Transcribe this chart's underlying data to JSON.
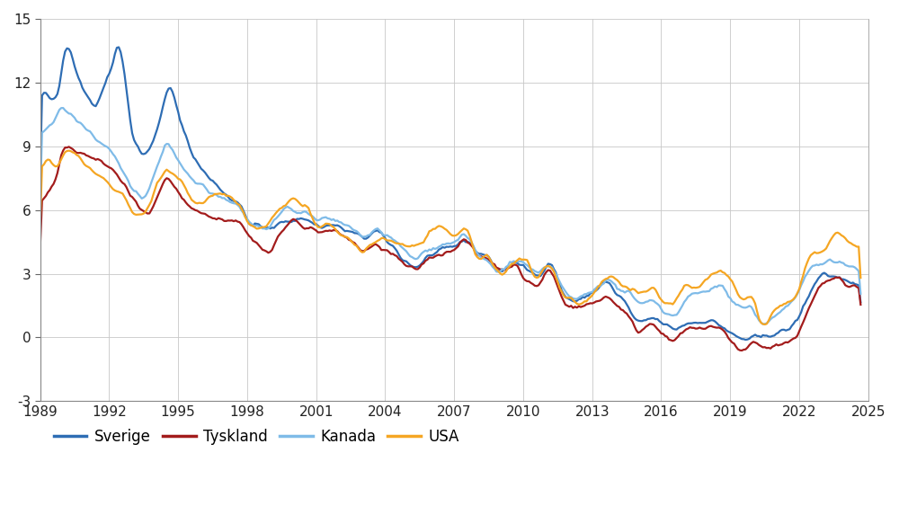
{
  "ylim": [
    -3,
    15
  ],
  "yticks": [
    -3,
    0,
    3,
    6,
    9,
    12,
    15
  ],
  "xticks": [
    1989,
    1992,
    1995,
    1998,
    2001,
    2004,
    2007,
    2010,
    2013,
    2016,
    2019,
    2022,
    2025
  ],
  "series": {
    "Sverige": {
      "color": "#2E6DB4",
      "linewidth": 1.6
    },
    "Tyskland": {
      "color": "#A31C1C",
      "linewidth": 1.6
    },
    "Kanada": {
      "color": "#7FBBE8",
      "linewidth": 1.6
    },
    "USA": {
      "color": "#F5A623",
      "linewidth": 1.6
    }
  },
  "Sverige_knots": [
    [
      1989.0,
      11.2
    ],
    [
      1989.17,
      11.5
    ],
    [
      1989.33,
      11.4
    ],
    [
      1989.5,
      11.1
    ],
    [
      1989.67,
      11.3
    ],
    [
      1989.83,
      11.7
    ],
    [
      1990.0,
      13.2
    ],
    [
      1990.17,
      13.8
    ],
    [
      1990.33,
      13.5
    ],
    [
      1990.5,
      12.8
    ],
    [
      1990.67,
      12.2
    ],
    [
      1990.83,
      11.8
    ],
    [
      1991.0,
      11.5
    ],
    [
      1991.17,
      11.2
    ],
    [
      1991.33,
      10.9
    ],
    [
      1991.5,
      11.0
    ],
    [
      1991.67,
      11.5
    ],
    [
      1991.83,
      12.0
    ],
    [
      1992.0,
      12.5
    ],
    [
      1992.17,
      13.0
    ],
    [
      1992.33,
      13.7
    ],
    [
      1992.5,
      13.5
    ],
    [
      1992.67,
      12.5
    ],
    [
      1992.83,
      11.0
    ],
    [
      1993.0,
      9.5
    ],
    [
      1993.17,
      9.2
    ],
    [
      1993.33,
      8.8
    ],
    [
      1993.5,
      8.5
    ],
    [
      1993.67,
      8.8
    ],
    [
      1993.83,
      9.0
    ],
    [
      1994.0,
      9.5
    ],
    [
      1994.17,
      10.2
    ],
    [
      1994.33,
      10.8
    ],
    [
      1994.5,
      11.5
    ],
    [
      1994.67,
      11.8
    ],
    [
      1994.83,
      11.3
    ],
    [
      1995.0,
      10.5
    ],
    [
      1995.17,
      10.0
    ],
    [
      1995.33,
      9.5
    ],
    [
      1995.5,
      9.0
    ],
    [
      1995.67,
      8.5
    ],
    [
      1995.83,
      8.2
    ],
    [
      1996.0,
      8.0
    ],
    [
      1996.33,
      7.5
    ],
    [
      1996.67,
      7.2
    ],
    [
      1997.0,
      6.8
    ],
    [
      1997.33,
      6.5
    ],
    [
      1997.67,
      6.3
    ],
    [
      1998.0,
      5.5
    ],
    [
      1998.33,
      5.3
    ],
    [
      1998.67,
      5.2
    ],
    [
      1999.0,
      5.1
    ],
    [
      1999.33,
      5.3
    ],
    [
      1999.67,
      5.5
    ],
    [
      2000.0,
      5.5
    ],
    [
      2000.33,
      5.6
    ],
    [
      2000.67,
      5.5
    ],
    [
      2001.0,
      5.3
    ],
    [
      2001.33,
      5.2
    ],
    [
      2001.67,
      5.3
    ],
    [
      2002.0,
      5.2
    ],
    [
      2002.33,
      5.0
    ],
    [
      2002.67,
      4.9
    ],
    [
      2003.0,
      4.7
    ],
    [
      2003.33,
      4.8
    ],
    [
      2003.67,
      5.0
    ],
    [
      2004.0,
      4.6
    ],
    [
      2004.33,
      4.3
    ],
    [
      2004.67,
      3.8
    ],
    [
      2005.0,
      3.5
    ],
    [
      2005.33,
      3.3
    ],
    [
      2005.67,
      3.6
    ],
    [
      2006.0,
      3.9
    ],
    [
      2006.33,
      4.0
    ],
    [
      2006.67,
      4.2
    ],
    [
      2007.0,
      4.3
    ],
    [
      2007.33,
      4.5
    ],
    [
      2007.67,
      4.5
    ],
    [
      2008.0,
      4.0
    ],
    [
      2008.33,
      3.9
    ],
    [
      2008.67,
      3.5
    ],
    [
      2009.0,
      3.1
    ],
    [
      2009.33,
      3.3
    ],
    [
      2009.67,
      3.5
    ],
    [
      2010.0,
      3.3
    ],
    [
      2010.33,
      3.1
    ],
    [
      2010.67,
      2.9
    ],
    [
      2011.0,
      3.4
    ],
    [
      2011.33,
      3.3
    ],
    [
      2011.67,
      2.2
    ],
    [
      2012.0,
      1.8
    ],
    [
      2012.33,
      1.7
    ],
    [
      2012.67,
      1.9
    ],
    [
      2013.0,
      2.1
    ],
    [
      2013.33,
      2.4
    ],
    [
      2013.67,
      2.6
    ],
    [
      2014.0,
      2.1
    ],
    [
      2014.33,
      1.8
    ],
    [
      2014.67,
      1.2
    ],
    [
      2015.0,
      0.7
    ],
    [
      2015.33,
      0.8
    ],
    [
      2015.67,
      0.9
    ],
    [
      2016.0,
      0.7
    ],
    [
      2016.33,
      0.5
    ],
    [
      2016.67,
      0.4
    ],
    [
      2017.0,
      0.6
    ],
    [
      2017.33,
      0.7
    ],
    [
      2017.67,
      0.7
    ],
    [
      2018.0,
      0.8
    ],
    [
      2018.33,
      0.7
    ],
    [
      2018.67,
      0.5
    ],
    [
      2019.0,
      0.2
    ],
    [
      2019.33,
      0.0
    ],
    [
      2019.67,
      -0.1
    ],
    [
      2020.0,
      0.0
    ],
    [
      2020.33,
      0.0
    ],
    [
      2020.67,
      0.1
    ],
    [
      2021.0,
      0.2
    ],
    [
      2021.33,
      0.3
    ],
    [
      2021.67,
      0.5
    ],
    [
      2022.0,
      1.0
    ],
    [
      2022.33,
      1.8
    ],
    [
      2022.67,
      2.5
    ],
    [
      2023.0,
      3.0
    ],
    [
      2023.33,
      2.9
    ],
    [
      2023.67,
      2.8
    ],
    [
      2024.0,
      2.6
    ],
    [
      2024.33,
      2.5
    ],
    [
      2024.67,
      2.4
    ]
  ],
  "Tyskland_knots": [
    [
      1989.0,
      6.5
    ],
    [
      1989.25,
      6.7
    ],
    [
      1989.5,
      7.0
    ],
    [
      1989.75,
      7.8
    ],
    [
      1990.0,
      8.9
    ],
    [
      1990.25,
      9.0
    ],
    [
      1990.5,
      8.8
    ],
    [
      1990.75,
      8.7
    ],
    [
      1991.0,
      8.6
    ],
    [
      1991.25,
      8.5
    ],
    [
      1991.5,
      8.4
    ],
    [
      1991.75,
      8.2
    ],
    [
      1992.0,
      8.0
    ],
    [
      1992.25,
      7.8
    ],
    [
      1992.5,
      7.5
    ],
    [
      1992.75,
      7.0
    ],
    [
      1993.0,
      6.5
    ],
    [
      1993.25,
      6.2
    ],
    [
      1993.5,
      6.0
    ],
    [
      1993.75,
      5.9
    ],
    [
      1994.0,
      6.3
    ],
    [
      1994.25,
      7.0
    ],
    [
      1994.5,
      7.5
    ],
    [
      1994.75,
      7.3
    ],
    [
      1995.0,
      6.8
    ],
    [
      1995.25,
      6.5
    ],
    [
      1995.5,
      6.2
    ],
    [
      1995.75,
      6.0
    ],
    [
      1996.0,
      5.9
    ],
    [
      1996.33,
      5.7
    ],
    [
      1996.67,
      5.6
    ],
    [
      1997.0,
      5.6
    ],
    [
      1997.33,
      5.5
    ],
    [
      1997.67,
      5.5
    ],
    [
      1998.0,
      4.9
    ],
    [
      1998.33,
      4.5
    ],
    [
      1998.67,
      4.2
    ],
    [
      1999.0,
      4.0
    ],
    [
      1999.33,
      4.7
    ],
    [
      1999.67,
      5.2
    ],
    [
      2000.0,
      5.5
    ],
    [
      2000.33,
      5.3
    ],
    [
      2000.67,
      5.2
    ],
    [
      2001.0,
      5.0
    ],
    [
      2001.33,
      5.0
    ],
    [
      2001.67,
      5.0
    ],
    [
      2002.0,
      4.9
    ],
    [
      2002.33,
      4.7
    ],
    [
      2002.67,
      4.4
    ],
    [
      2003.0,
      4.1
    ],
    [
      2003.33,
      4.2
    ],
    [
      2003.67,
      4.3
    ],
    [
      2004.0,
      4.1
    ],
    [
      2004.33,
      3.9
    ],
    [
      2004.67,
      3.6
    ],
    [
      2005.0,
      3.3
    ],
    [
      2005.33,
      3.2
    ],
    [
      2005.67,
      3.5
    ],
    [
      2006.0,
      3.8
    ],
    [
      2006.33,
      3.9
    ],
    [
      2006.67,
      4.0
    ],
    [
      2007.0,
      4.2
    ],
    [
      2007.33,
      4.5
    ],
    [
      2007.67,
      4.4
    ],
    [
      2008.0,
      3.9
    ],
    [
      2008.33,
      3.8
    ],
    [
      2008.67,
      3.5
    ],
    [
      2009.0,
      3.2
    ],
    [
      2009.33,
      3.3
    ],
    [
      2009.67,
      3.4
    ],
    [
      2010.0,
      2.8
    ],
    [
      2010.33,
      2.6
    ],
    [
      2010.67,
      2.4
    ],
    [
      2011.0,
      3.1
    ],
    [
      2011.33,
      2.9
    ],
    [
      2011.67,
      1.9
    ],
    [
      2012.0,
      1.5
    ],
    [
      2012.33,
      1.4
    ],
    [
      2012.67,
      1.5
    ],
    [
      2013.0,
      1.6
    ],
    [
      2013.33,
      1.8
    ],
    [
      2013.67,
      1.9
    ],
    [
      2014.0,
      1.6
    ],
    [
      2014.33,
      1.3
    ],
    [
      2014.67,
      0.8
    ],
    [
      2015.0,
      0.3
    ],
    [
      2015.33,
      0.5
    ],
    [
      2015.67,
      0.7
    ],
    [
      2016.0,
      0.2
    ],
    [
      2016.33,
      -0.1
    ],
    [
      2016.67,
      -0.1
    ],
    [
      2017.0,
      0.3
    ],
    [
      2017.33,
      0.4
    ],
    [
      2017.67,
      0.4
    ],
    [
      2018.0,
      0.5
    ],
    [
      2018.33,
      0.5
    ],
    [
      2018.67,
      0.3
    ],
    [
      2019.0,
      -0.1
    ],
    [
      2019.33,
      -0.5
    ],
    [
      2019.67,
      -0.6
    ],
    [
      2020.0,
      -0.2
    ],
    [
      2020.33,
      -0.4
    ],
    [
      2020.67,
      -0.5
    ],
    [
      2021.0,
      -0.4
    ],
    [
      2021.33,
      -0.3
    ],
    [
      2021.67,
      -0.2
    ],
    [
      2022.0,
      0.2
    ],
    [
      2022.33,
      1.2
    ],
    [
      2022.67,
      2.0
    ],
    [
      2023.0,
      2.5
    ],
    [
      2023.33,
      2.7
    ],
    [
      2023.67,
      2.8
    ],
    [
      2024.0,
      2.5
    ],
    [
      2024.33,
      2.4
    ],
    [
      2024.67,
      2.3
    ]
  ],
  "Kanada_knots": [
    [
      1989.0,
      9.5
    ],
    [
      1989.25,
      9.8
    ],
    [
      1989.5,
      10.0
    ],
    [
      1989.75,
      10.5
    ],
    [
      1990.0,
      10.8
    ],
    [
      1990.25,
      10.6
    ],
    [
      1990.5,
      10.3
    ],
    [
      1990.75,
      10.0
    ],
    [
      1991.0,
      9.8
    ],
    [
      1991.25,
      9.5
    ],
    [
      1991.5,
      9.2
    ],
    [
      1991.75,
      9.0
    ],
    [
      1992.0,
      8.8
    ],
    [
      1992.25,
      8.5
    ],
    [
      1992.5,
      8.0
    ],
    [
      1992.75,
      7.5
    ],
    [
      1993.0,
      7.0
    ],
    [
      1993.25,
      6.7
    ],
    [
      1993.5,
      6.5
    ],
    [
      1993.75,
      7.0
    ],
    [
      1994.0,
      7.8
    ],
    [
      1994.25,
      8.5
    ],
    [
      1994.5,
      9.2
    ],
    [
      1994.75,
      8.8
    ],
    [
      1995.0,
      8.3
    ],
    [
      1995.25,
      8.0
    ],
    [
      1995.5,
      7.6
    ],
    [
      1995.75,
      7.3
    ],
    [
      1996.0,
      7.2
    ],
    [
      1996.33,
      6.9
    ],
    [
      1996.67,
      6.7
    ],
    [
      1997.0,
      6.5
    ],
    [
      1997.33,
      6.3
    ],
    [
      1997.67,
      6.1
    ],
    [
      1998.0,
      5.5
    ],
    [
      1998.33,
      5.3
    ],
    [
      1998.67,
      5.2
    ],
    [
      1999.0,
      5.3
    ],
    [
      1999.33,
      5.7
    ],
    [
      1999.67,
      6.1
    ],
    [
      2000.0,
      6.0
    ],
    [
      2000.33,
      5.9
    ],
    [
      2000.67,
      5.8
    ],
    [
      2001.0,
      5.5
    ],
    [
      2001.33,
      5.6
    ],
    [
      2001.67,
      5.5
    ],
    [
      2002.0,
      5.4
    ],
    [
      2002.33,
      5.3
    ],
    [
      2002.67,
      5.0
    ],
    [
      2003.0,
      4.7
    ],
    [
      2003.33,
      4.9
    ],
    [
      2003.67,
      5.1
    ],
    [
      2004.0,
      4.8
    ],
    [
      2004.33,
      4.6
    ],
    [
      2004.67,
      4.3
    ],
    [
      2005.0,
      3.9
    ],
    [
      2005.33,
      3.7
    ],
    [
      2005.67,
      4.0
    ],
    [
      2006.0,
      4.2
    ],
    [
      2006.33,
      4.3
    ],
    [
      2006.67,
      4.4
    ],
    [
      2007.0,
      4.5
    ],
    [
      2007.33,
      4.8
    ],
    [
      2007.67,
      4.6
    ],
    [
      2008.0,
      3.9
    ],
    [
      2008.33,
      3.7
    ],
    [
      2008.67,
      3.3
    ],
    [
      2009.0,
      3.1
    ],
    [
      2009.33,
      3.4
    ],
    [
      2009.67,
      3.6
    ],
    [
      2010.0,
      3.5
    ],
    [
      2010.33,
      3.2
    ],
    [
      2010.67,
      3.0
    ],
    [
      2011.0,
      3.3
    ],
    [
      2011.33,
      3.2
    ],
    [
      2011.67,
      2.4
    ],
    [
      2012.0,
      1.9
    ],
    [
      2012.33,
      1.8
    ],
    [
      2012.67,
      2.0
    ],
    [
      2013.0,
      2.2
    ],
    [
      2013.33,
      2.5
    ],
    [
      2013.67,
      2.7
    ],
    [
      2014.0,
      2.4
    ],
    [
      2014.33,
      2.2
    ],
    [
      2014.67,
      2.0
    ],
    [
      2015.0,
      1.6
    ],
    [
      2015.33,
      1.7
    ],
    [
      2015.67,
      1.8
    ],
    [
      2016.0,
      1.3
    ],
    [
      2016.33,
      1.1
    ],
    [
      2016.67,
      1.1
    ],
    [
      2017.0,
      1.7
    ],
    [
      2017.33,
      2.0
    ],
    [
      2017.67,
      2.1
    ],
    [
      2018.0,
      2.2
    ],
    [
      2018.33,
      2.4
    ],
    [
      2018.67,
      2.4
    ],
    [
      2019.0,
      1.8
    ],
    [
      2019.33,
      1.5
    ],
    [
      2019.67,
      1.4
    ],
    [
      2020.0,
      1.3
    ],
    [
      2020.33,
      0.6
    ],
    [
      2020.67,
      0.7
    ],
    [
      2021.0,
      1.1
    ],
    [
      2021.33,
      1.4
    ],
    [
      2021.67,
      1.7
    ],
    [
      2022.0,
      2.2
    ],
    [
      2022.33,
      3.0
    ],
    [
      2022.67,
      3.4
    ],
    [
      2023.0,
      3.5
    ],
    [
      2023.33,
      3.6
    ],
    [
      2023.67,
      3.5
    ],
    [
      2024.0,
      3.4
    ],
    [
      2024.33,
      3.3
    ],
    [
      2024.67,
      3.2
    ]
  ],
  "USA_knots": [
    [
      1989.0,
      8.0
    ],
    [
      1989.25,
      8.3
    ],
    [
      1989.5,
      8.2
    ],
    [
      1989.75,
      8.0
    ],
    [
      1990.0,
      8.6
    ],
    [
      1990.25,
      8.8
    ],
    [
      1990.5,
      8.7
    ],
    [
      1990.75,
      8.4
    ],
    [
      1991.0,
      8.0
    ],
    [
      1991.25,
      7.9
    ],
    [
      1991.5,
      7.7
    ],
    [
      1991.75,
      7.5
    ],
    [
      1992.0,
      7.2
    ],
    [
      1992.25,
      7.0
    ],
    [
      1992.5,
      6.8
    ],
    [
      1992.75,
      6.4
    ],
    [
      1993.0,
      5.9
    ],
    [
      1993.25,
      5.8
    ],
    [
      1993.5,
      5.8
    ],
    [
      1993.75,
      6.2
    ],
    [
      1994.0,
      7.1
    ],
    [
      1994.25,
      7.6
    ],
    [
      1994.5,
      7.9
    ],
    [
      1994.75,
      7.8
    ],
    [
      1995.0,
      7.5
    ],
    [
      1995.25,
      7.2
    ],
    [
      1995.5,
      6.6
    ],
    [
      1995.75,
      6.4
    ],
    [
      1996.0,
      6.3
    ],
    [
      1996.33,
      6.6
    ],
    [
      1996.67,
      6.7
    ],
    [
      1997.0,
      6.7
    ],
    [
      1997.33,
      6.5
    ],
    [
      1997.67,
      6.2
    ],
    [
      1998.0,
      5.5
    ],
    [
      1998.33,
      5.2
    ],
    [
      1998.67,
      5.1
    ],
    [
      1999.0,
      5.5
    ],
    [
      1999.33,
      5.9
    ],
    [
      1999.67,
      6.2
    ],
    [
      2000.0,
      6.5
    ],
    [
      2000.33,
      6.3
    ],
    [
      2000.67,
      6.1
    ],
    [
      2001.0,
      5.2
    ],
    [
      2001.33,
      5.3
    ],
    [
      2001.67,
      5.2
    ],
    [
      2002.0,
      4.9
    ],
    [
      2002.33,
      4.7
    ],
    [
      2002.67,
      4.3
    ],
    [
      2003.0,
      4.0
    ],
    [
      2003.33,
      4.3
    ],
    [
      2003.67,
      4.6
    ],
    [
      2004.0,
      4.6
    ],
    [
      2004.33,
      4.5
    ],
    [
      2004.67,
      4.4
    ],
    [
      2005.0,
      4.3
    ],
    [
      2005.33,
      4.3
    ],
    [
      2005.67,
      4.6
    ],
    [
      2006.0,
      5.0
    ],
    [
      2006.33,
      5.1
    ],
    [
      2006.67,
      5.0
    ],
    [
      2007.0,
      4.8
    ],
    [
      2007.33,
      5.0
    ],
    [
      2007.67,
      4.9
    ],
    [
      2008.0,
      3.7
    ],
    [
      2008.33,
      3.8
    ],
    [
      2008.67,
      3.5
    ],
    [
      2009.0,
      2.9
    ],
    [
      2009.33,
      3.3
    ],
    [
      2009.67,
      3.6
    ],
    [
      2010.0,
      3.8
    ],
    [
      2010.33,
      3.2
    ],
    [
      2010.67,
      2.8
    ],
    [
      2011.0,
      3.4
    ],
    [
      2011.33,
      3.1
    ],
    [
      2011.67,
      2.1
    ],
    [
      2012.0,
      1.9
    ],
    [
      2012.33,
      1.6
    ],
    [
      2012.67,
      1.7
    ],
    [
      2013.0,
      2.0
    ],
    [
      2013.33,
      2.5
    ],
    [
      2013.67,
      2.8
    ],
    [
      2014.0,
      2.8
    ],
    [
      2014.33,
      2.5
    ],
    [
      2014.67,
      2.3
    ],
    [
      2015.0,
      2.1
    ],
    [
      2015.33,
      2.2
    ],
    [
      2015.67,
      2.3
    ],
    [
      2016.0,
      1.8
    ],
    [
      2016.33,
      1.5
    ],
    [
      2016.67,
      1.8
    ],
    [
      2017.0,
      2.4
    ],
    [
      2017.33,
      2.3
    ],
    [
      2017.67,
      2.4
    ],
    [
      2018.0,
      2.8
    ],
    [
      2018.33,
      3.0
    ],
    [
      2018.67,
      3.1
    ],
    [
      2019.0,
      2.7
    ],
    [
      2019.33,
      2.0
    ],
    [
      2019.67,
      1.8
    ],
    [
      2020.0,
      1.8
    ],
    [
      2020.33,
      0.7
    ],
    [
      2020.67,
      0.8
    ],
    [
      2021.0,
      1.4
    ],
    [
      2021.33,
      1.5
    ],
    [
      2021.67,
      1.7
    ],
    [
      2022.0,
      2.3
    ],
    [
      2022.33,
      3.5
    ],
    [
      2022.67,
      4.0
    ],
    [
      2023.0,
      4.0
    ],
    [
      2023.33,
      4.5
    ],
    [
      2023.67,
      4.9
    ],
    [
      2024.0,
      4.6
    ],
    [
      2024.33,
      4.4
    ],
    [
      2024.67,
      4.2
    ]
  ],
  "legend_labels": [
    "Sverige",
    "Tyskland",
    "Kanada",
    "USA"
  ],
  "legend_colors": [
    "#2E6DB4",
    "#A31C1C",
    "#7FBBE8",
    "#F5A623"
  ],
  "bg_color": "#FFFFFF",
  "grid_color": "#C8C8C8"
}
